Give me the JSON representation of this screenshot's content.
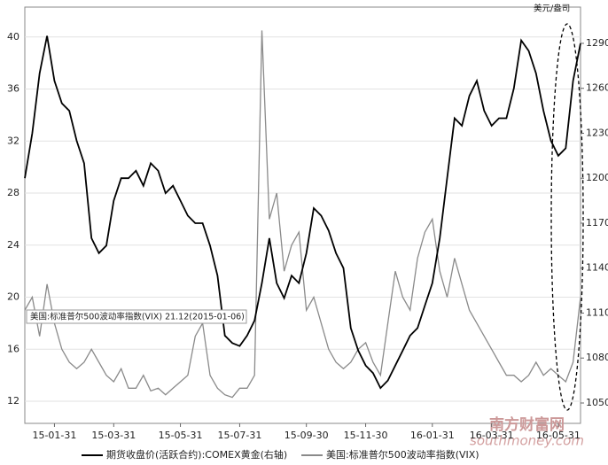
{
  "chart_data": {
    "type": "line",
    "categories": [
      null,
      null,
      null,
      null,
      "15-01-31",
      null,
      null,
      null,
      null,
      null,
      null,
      null,
      "15-03-31",
      null,
      null,
      null,
      null,
      null,
      null,
      null,
      null,
      "15-05-31",
      null,
      null,
      null,
      null,
      null,
      null,
      null,
      "15-07-31",
      null,
      null,
      null,
      null,
      null,
      null,
      null,
      null,
      "15-09-30",
      null,
      null,
      null,
      null,
      null,
      null,
      null,
      "15-11-30",
      null,
      null,
      null,
      null,
      null,
      null,
      null,
      null,
      "16-01-31",
      null,
      null,
      null,
      null,
      null,
      null,
      null,
      "16-03-31",
      null,
      null,
      null,
      null,
      null,
      null,
      null,
      null,
      "16-05-31",
      null,
      null,
      null
    ],
    "series": [
      {
        "name": "期货收盘价(活跃合约):COMEX黄金(右轴)",
        "color": "#000000",
        "axis": "y2",
        "values": [
          1200,
          1230,
          1270,
          1295,
          1265,
          1250,
          1245,
          1225,
          1210,
          1160,
          1150,
          1155,
          1185,
          1200,
          1200,
          1205,
          1195,
          1210,
          1205,
          1190,
          1195,
          1185,
          1175,
          1170,
          1170,
          1155,
          1135,
          1095,
          1090,
          1088,
          1095,
          1105,
          1130,
          1160,
          1130,
          1120,
          1135,
          1130,
          1150,
          1180,
          1175,
          1165,
          1150,
          1140,
          1100,
          1085,
          1075,
          1070,
          1060,
          1065,
          1075,
          1085,
          1095,
          1100,
          1115,
          1130,
          1160,
          1200,
          1240,
          1235,
          1255,
          1265,
          1245,
          1235,
          1240,
          1240,
          1260,
          1292,
          1285,
          1270,
          1245,
          1225,
          1215,
          1220,
          1265,
          1290
        ]
      },
      {
        "name": "美国:标准普尔500波动率指数(VIX)",
        "color": "#8a8a8a",
        "values": [
          19,
          20,
          17,
          21,
          18,
          16,
          15,
          14.5,
          15,
          16,
          15,
          14,
          13.5,
          14.5,
          13,
          13,
          14,
          12.8,
          13,
          12.5,
          13,
          13.5,
          14,
          17,
          18,
          14,
          13,
          12.5,
          12.3,
          13,
          13,
          14,
          40.5,
          26,
          28,
          22,
          24,
          25,
          19,
          20,
          18,
          16,
          15,
          14.5,
          15,
          16,
          16.5,
          15,
          14,
          18,
          22,
          20,
          19,
          23,
          25,
          26,
          22,
          20,
          23,
          21,
          19,
          18,
          17,
          16,
          15,
          14,
          14,
          13.5,
          14,
          15,
          14,
          14.5,
          14,
          13.5,
          15,
          20
        ]
      }
    ],
    "ylim": [
      10.3,
      42.3
    ],
    "yticks": [
      12,
      16,
      20,
      24,
      28,
      32,
      36,
      40
    ],
    "y2lim": [
      1036.4,
      1314.2
    ],
    "y2ticks": [
      1050,
      1080,
      1110,
      1140,
      1170,
      1200,
      1230,
      1260,
      1290
    ],
    "y2_label": "美元/盎司",
    "annotation": "美国:标准普尔500波动率指数(VIX) 21.12(2015-01-06)",
    "watermark": "南方财富网",
    "watermark_url": "southmoney.com",
    "grid": true
  }
}
